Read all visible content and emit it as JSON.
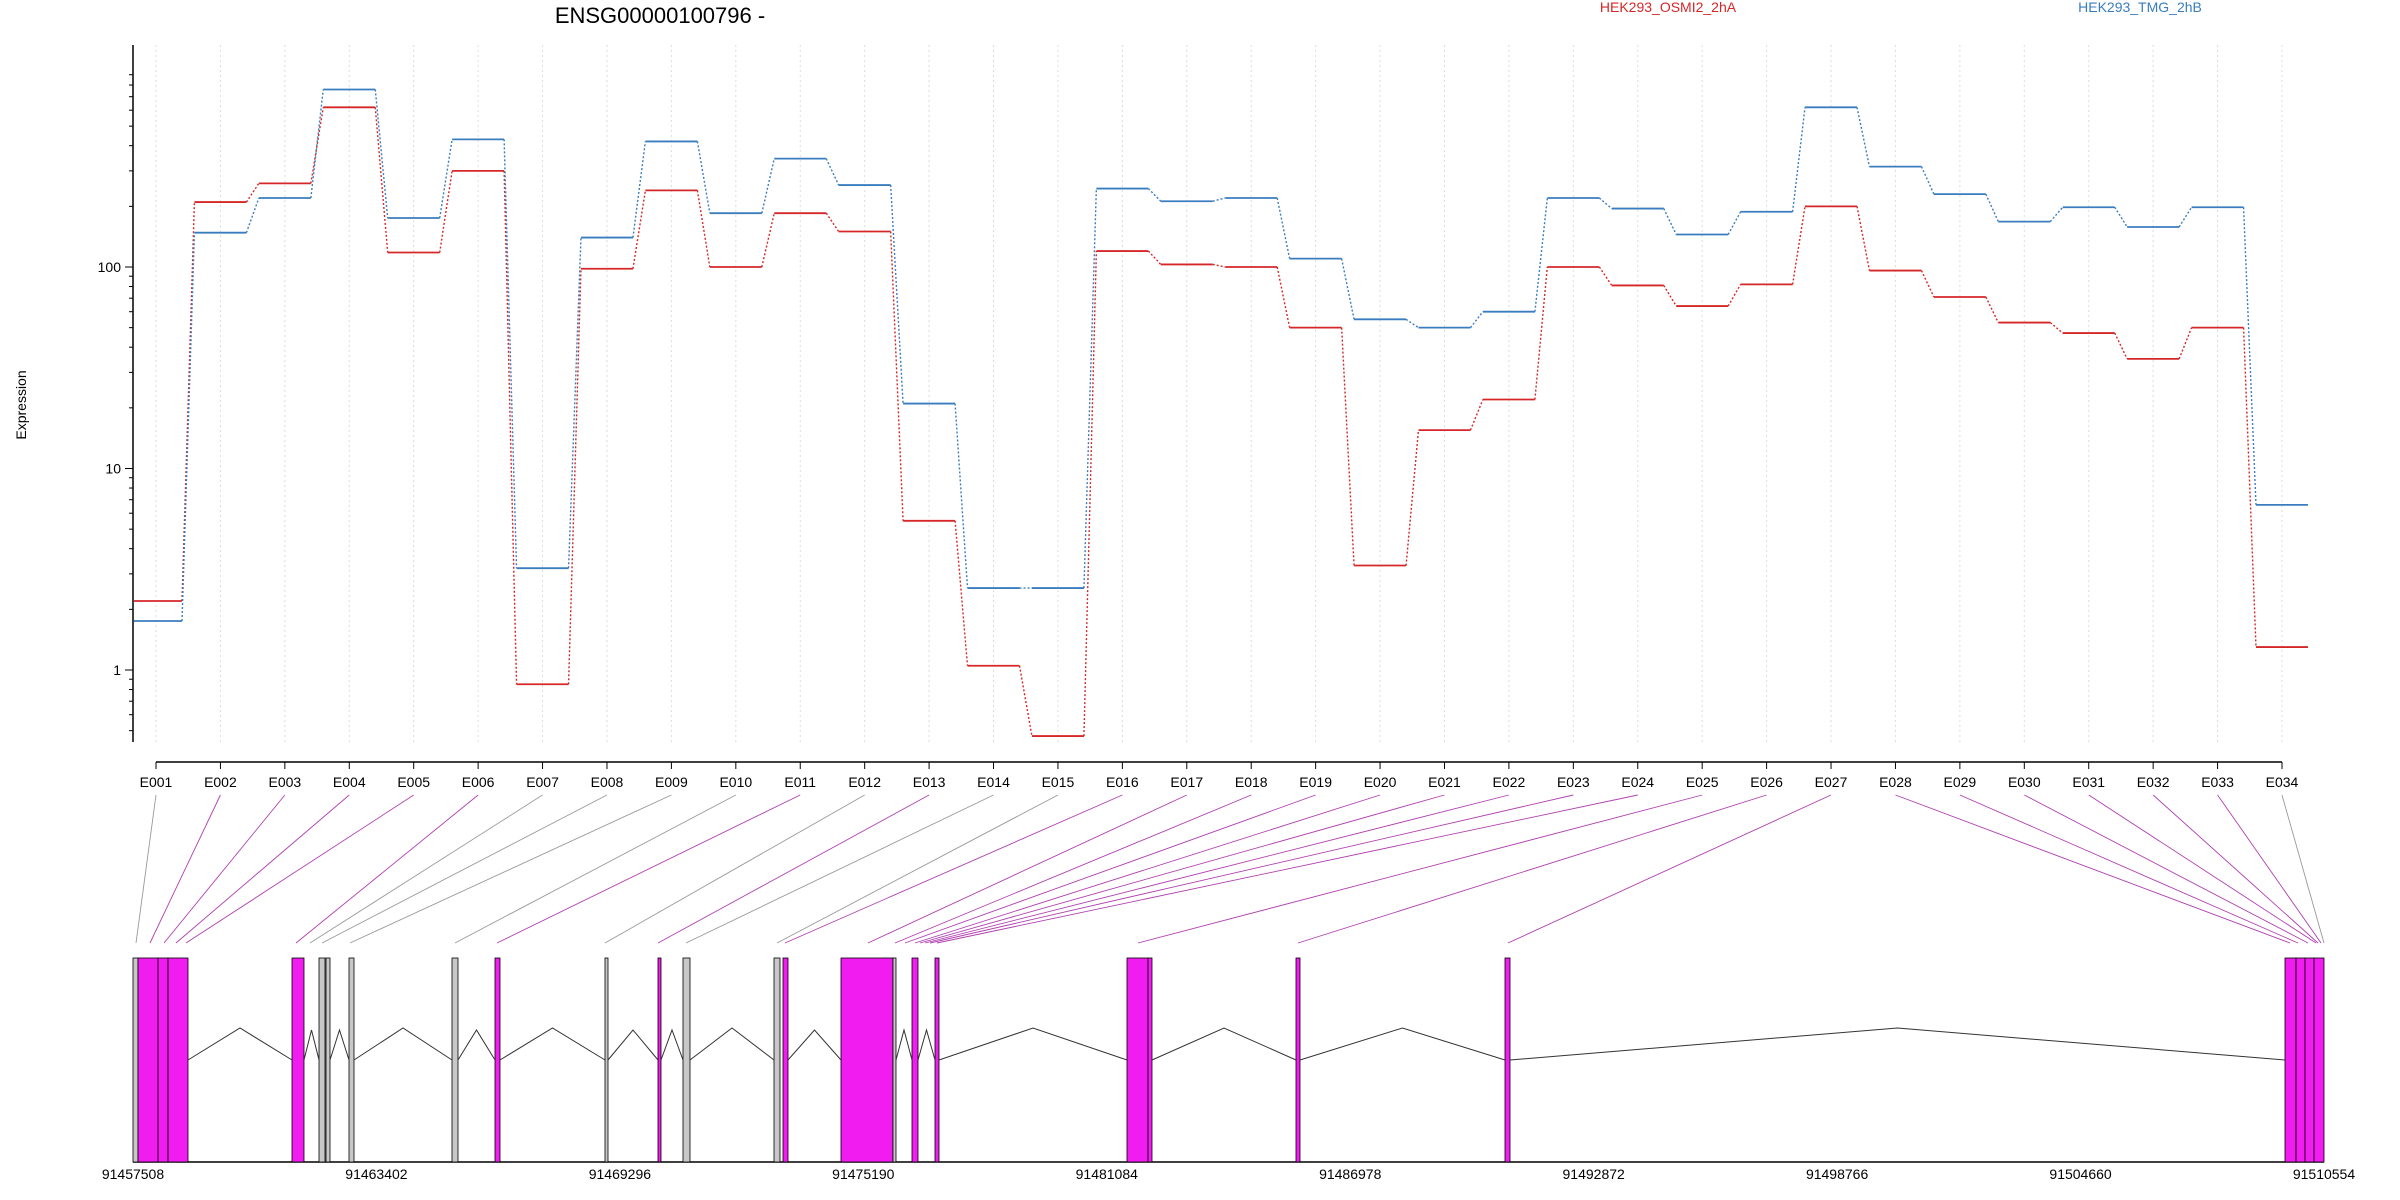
{
  "chart_data": {
    "type": "line",
    "title": "ENSG00000100796 -",
    "ylabel": "Expression",
    "xlabel": "",
    "yscale": "log",
    "ylim": [
      0.4,
      1000
    ],
    "yticks": [
      1,
      10,
      100
    ],
    "ytick_labels": [
      "1",
      "10",
      "100"
    ],
    "grid": "vertical dotted",
    "legend_position": "top-center",
    "categories": [
      "E001",
      "E002",
      "E003",
      "E004",
      "E005",
      "E006",
      "E007",
      "E008",
      "E009",
      "E010",
      "E011",
      "E012",
      "E013",
      "E014",
      "E015",
      "E016",
      "E017",
      "E018",
      "E019",
      "E020",
      "E021",
      "E022",
      "E023",
      "E024",
      "E025",
      "E026",
      "E027",
      "E028",
      "E029",
      "E030",
      "E031",
      "E032",
      "E033",
      "E034"
    ],
    "series": [
      {
        "name": "HEK293_OSMI2_2hA",
        "color": "#d62728",
        "values": [
          2.2,
          210,
          260,
          620,
          118,
          300,
          0.85,
          98,
          240,
          100,
          185,
          150,
          5.5,
          1.05,
          0.47,
          120,
          103,
          100,
          50,
          3.3,
          15.5,
          22,
          100,
          81,
          64,
          82,
          200,
          96,
          71,
          53,
          47,
          35,
          50,
          1.3
        ]
      },
      {
        "name": "HEK293_TMG_2hB",
        "color": "#3a7dbf",
        "values": [
          1.75,
          148,
          220,
          760,
          175,
          430,
          3.2,
          140,
          420,
          185,
          345,
          255,
          21,
          2.55,
          2.55,
          245,
          212,
          220,
          110,
          55,
          50,
          60,
          220,
          195,
          145,
          188,
          620,
          315,
          230,
          168,
          198,
          158,
          198,
          6.6
        ]
      }
    ]
  },
  "gene_model": {
    "coordinate_labels": [
      "91457508",
      "91463402",
      "91469296",
      "91475190",
      "91481084",
      "91486978",
      "91492872",
      "91498766",
      "91504660",
      "91510554"
    ],
    "coordinate_range": [
      91457508,
      91510554
    ],
    "exon_color": "#f01cf0",
    "other_color": "#c8c8c8"
  }
}
